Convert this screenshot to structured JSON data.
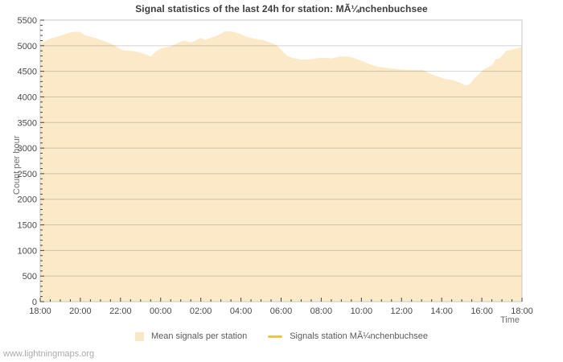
{
  "page": {
    "watermark": "www.lightningmaps.org"
  },
  "chart_data": {
    "type": "area",
    "title": "Signal statistics of the last 24h for station: MÃ¼nchenbuchsee",
    "xlabel": "Time",
    "ylabel": "Count per hour",
    "ylim": [
      0,
      5500
    ],
    "y_tick_step": 500,
    "y_minor_step": 100,
    "x_span_hours": 24,
    "x_major_step_hours": 2,
    "x_minor_step_hours": 0.5,
    "x_tick_labels": [
      "18:00",
      "20:00",
      "22:00",
      "00:00",
      "02:00",
      "04:00",
      "06:00",
      "08:00",
      "10:00",
      "12:00",
      "14:00",
      "16:00",
      "18:00"
    ],
    "grid": true,
    "legend_position": "bottom-center",
    "colors": {
      "area_fill": "#fbe9c8",
      "legend_line_swatch": "#e9c64c",
      "gridline": "#d2d2d2",
      "plot_border": "#c8c8c8",
      "tick": "#444444",
      "title_text": "#3e3e3e",
      "tick_text": "#4a4a4a",
      "axis_title_text": "#6e6e6e"
    },
    "series": [
      {
        "name": "Mean signals per station",
        "style": "area",
        "points_hours_vs_count": [
          [
            0,
            5030
          ],
          [
            0.2,
            5080
          ],
          [
            0.5,
            5140
          ],
          [
            0.8,
            5175
          ],
          [
            1.1,
            5210
          ],
          [
            1.5,
            5260
          ],
          [
            1.7,
            5270
          ],
          [
            2,
            5270
          ],
          [
            2.2,
            5210
          ],
          [
            2.4,
            5185
          ],
          [
            2.8,
            5145
          ],
          [
            3.2,
            5085
          ],
          [
            3.5,
            5040
          ],
          [
            3.8,
            4990
          ],
          [
            4,
            4930
          ],
          [
            4.2,
            4905
          ],
          [
            4.6,
            4900
          ],
          [
            5,
            4865
          ],
          [
            5.3,
            4825
          ],
          [
            5.5,
            4790
          ],
          [
            5.8,
            4900
          ],
          [
            6,
            4945
          ],
          [
            6.5,
            4985
          ],
          [
            7,
            5080
          ],
          [
            7.2,
            5100
          ],
          [
            7.5,
            5060
          ],
          [
            8,
            5155
          ],
          [
            8.2,
            5115
          ],
          [
            8.7,
            5180
          ],
          [
            9,
            5230
          ],
          [
            9.2,
            5285
          ],
          [
            9.5,
            5280
          ],
          [
            9.9,
            5240
          ],
          [
            10.3,
            5170
          ],
          [
            10.7,
            5135
          ],
          [
            11.1,
            5110
          ],
          [
            11.5,
            5055
          ],
          [
            11.8,
            5000
          ],
          [
            12,
            4920
          ],
          [
            12.3,
            4800
          ],
          [
            12.6,
            4760
          ],
          [
            13,
            4730
          ],
          [
            13.5,
            4735
          ],
          [
            13.8,
            4755
          ],
          [
            14.2,
            4765
          ],
          [
            14.5,
            4750
          ],
          [
            14.9,
            4785
          ],
          [
            15.2,
            4795
          ],
          [
            15.6,
            4765
          ],
          [
            16.1,
            4690
          ],
          [
            16.4,
            4640
          ],
          [
            16.8,
            4590
          ],
          [
            17.4,
            4560
          ],
          [
            17.8,
            4540
          ],
          [
            18.3,
            4530
          ],
          [
            19,
            4530
          ],
          [
            19.2,
            4505
          ],
          [
            19.4,
            4455
          ],
          [
            19.8,
            4400
          ],
          [
            20.2,
            4350
          ],
          [
            20.6,
            4325
          ],
          [
            21,
            4260
          ],
          [
            21.2,
            4220
          ],
          [
            21.4,
            4250
          ],
          [
            21.6,
            4350
          ],
          [
            22,
            4505
          ],
          [
            22.2,
            4560
          ],
          [
            22.5,
            4615
          ],
          [
            22.7,
            4740
          ],
          [
            22.9,
            4760
          ],
          [
            23.2,
            4895
          ],
          [
            23.5,
            4925
          ],
          [
            23.8,
            4955
          ],
          [
            24,
            4975
          ]
        ]
      },
      {
        "name": "Signals station MÃ¼nchenbuchsee",
        "style": "line",
        "points_hours_vs_count": []
      }
    ]
  },
  "legend": {
    "items": [
      {
        "label": "Mean signals per station"
      },
      {
        "label": "Signals station MÃ¼nchenbuchsee"
      }
    ]
  }
}
